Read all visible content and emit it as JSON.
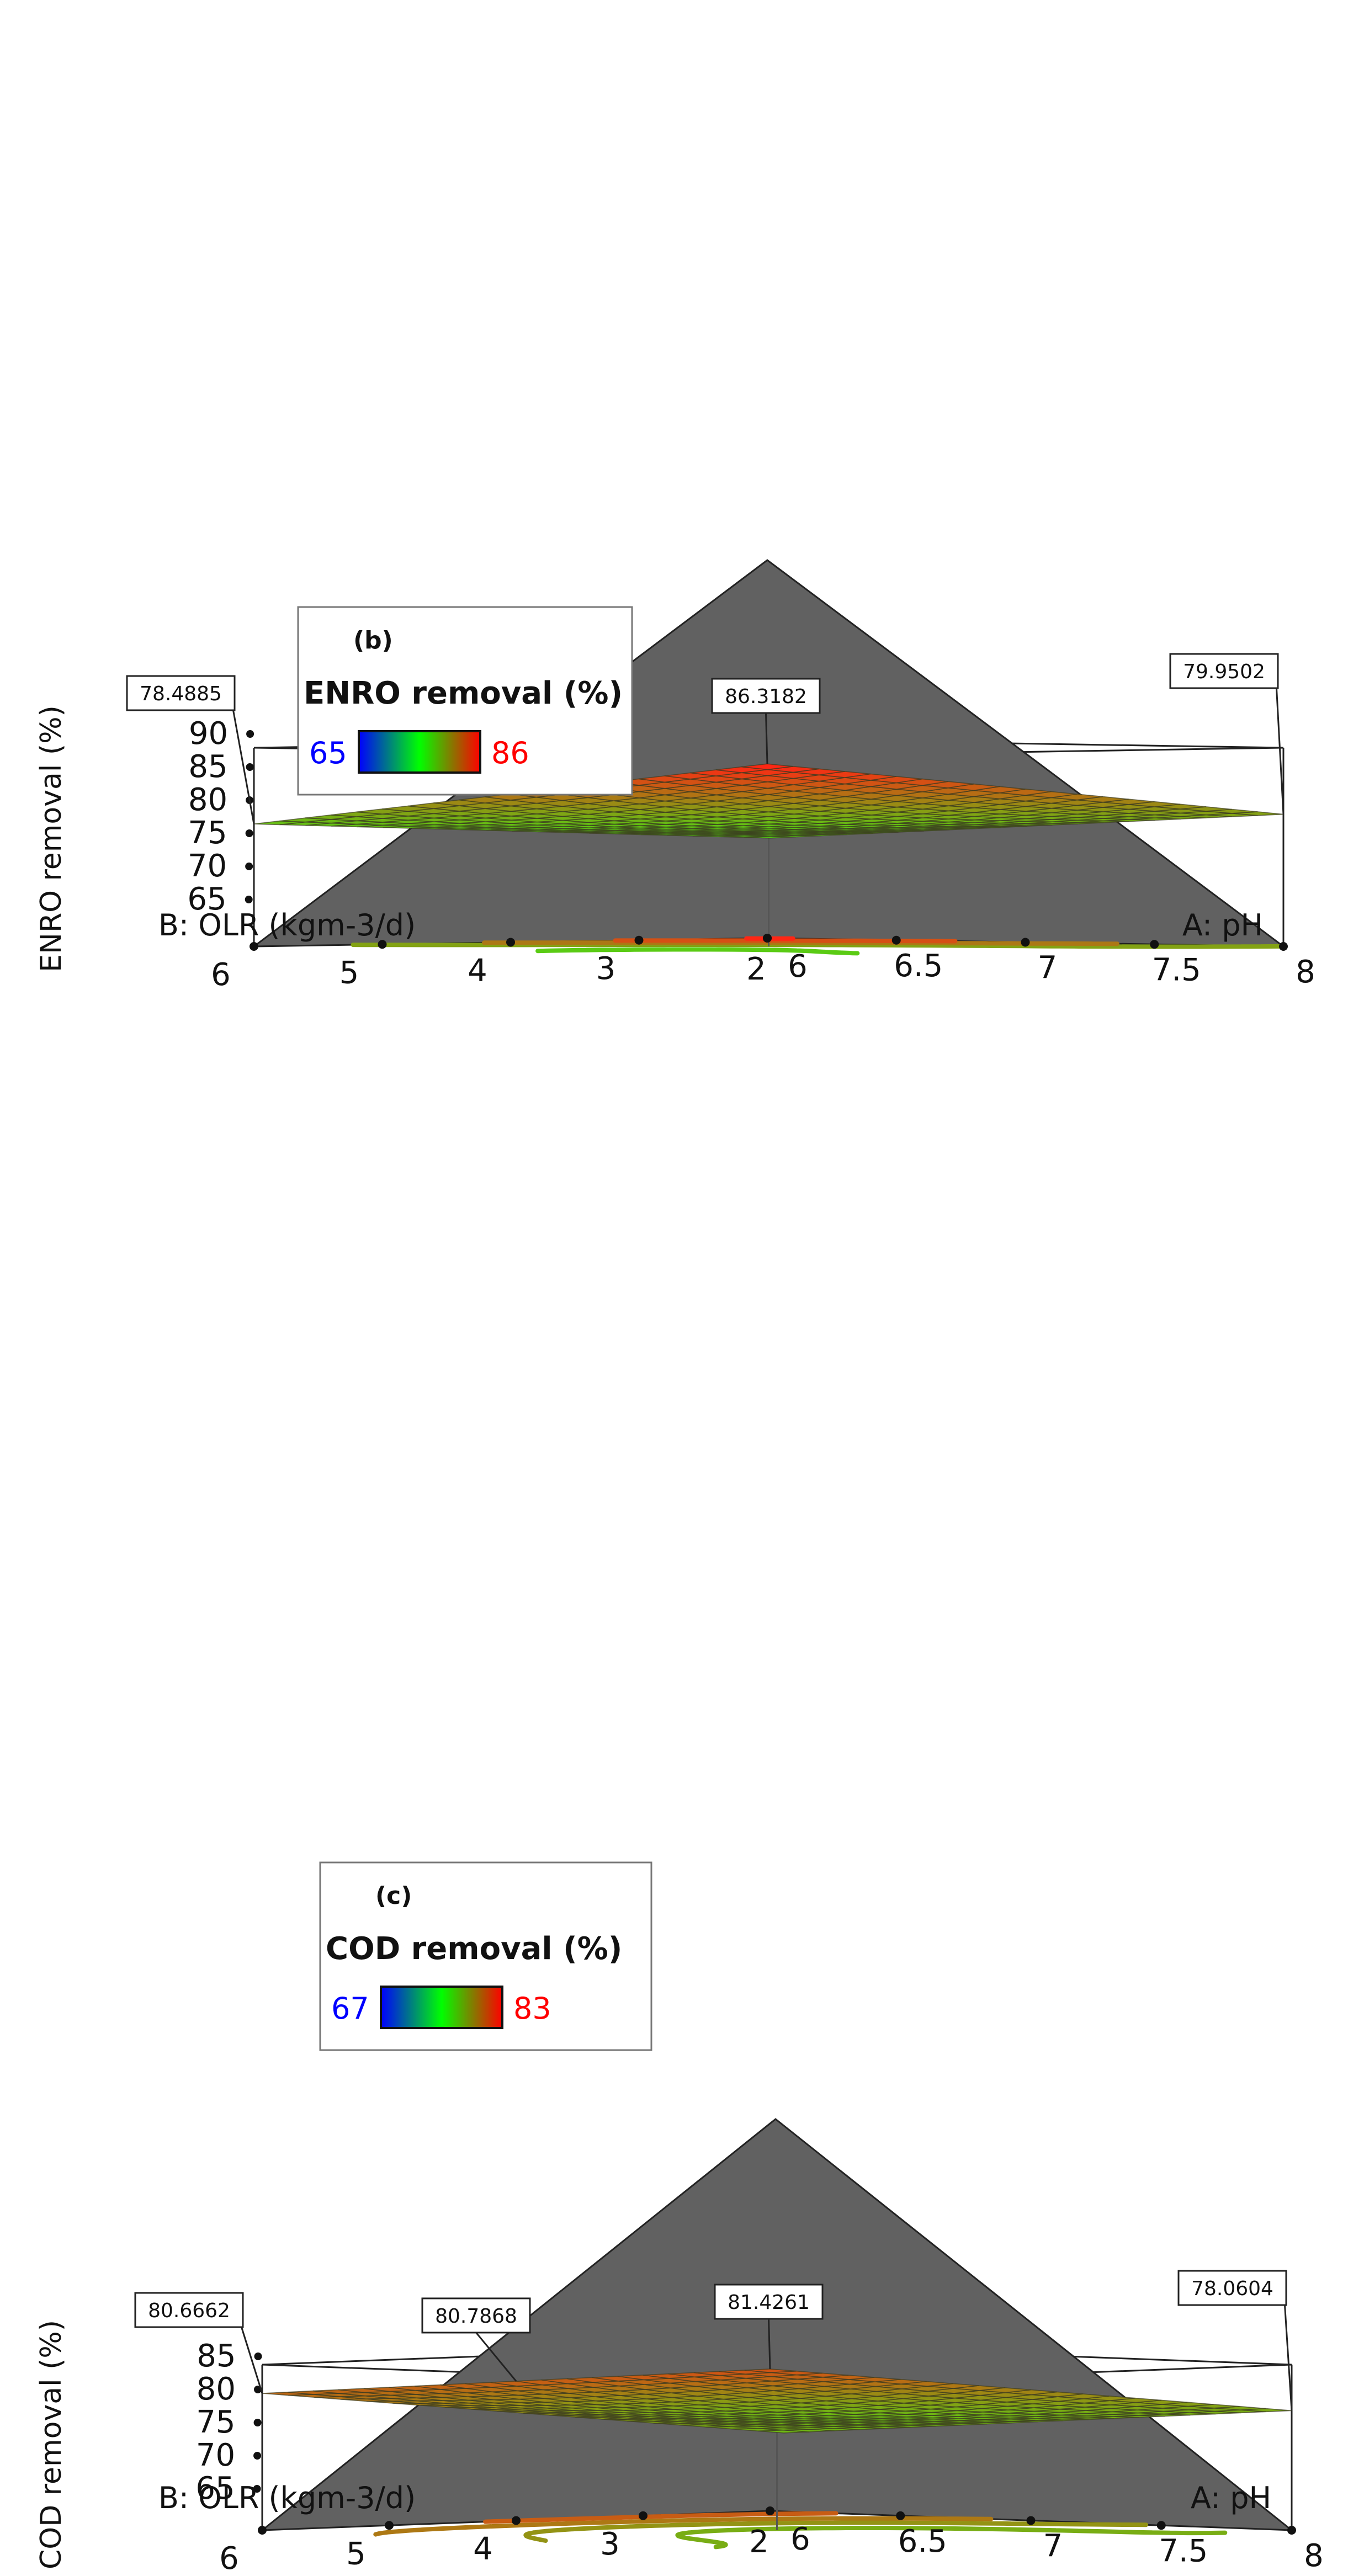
{
  "chart_data": [
    {
      "type": "surface3d",
      "panel_label": "(b)",
      "legend_title": "ENRO removal (%)",
      "legend_min": "65",
      "legend_max": "86",
      "color_low": "#0000ff",
      "color_mid": "#00ff00",
      "color_high": "#ff0000",
      "zlabel": "ENRO removal (%)",
      "xlabel": "A: pH",
      "ylabel": "B: OLR (kgm-3/d)",
      "x_ticks": [
        "6",
        "6.5",
        "7",
        "7.5",
        "8"
      ],
      "y_ticks": [
        "2",
        "3",
        "4",
        "5",
        "6"
      ],
      "z_ticks": [
        "65",
        "70",
        "75",
        "80",
        "85",
        "90"
      ],
      "xlim": [
        6,
        8
      ],
      "ylim": [
        2,
        6
      ],
      "zlim": [
        60,
        90
      ],
      "corner_flags": [
        {
          "label": "86.3182",
          "ph": 6,
          "olr": 2
        },
        {
          "label": "78.4885",
          "ph": 6,
          "olr": 6
        },
        {
          "label": "79.9502",
          "ph": 8,
          "olr": 2
        }
      ],
      "corner_values": {
        "ph6_olr2": 86.3182,
        "ph6_olr6": 78.4885,
        "ph8_olr2": 79.9502,
        "ph8_olr6": 77.6
      },
      "contour_levels": [
        78,
        80,
        82,
        84,
        86
      ]
    },
    {
      "type": "surface3d",
      "panel_label": "(c)",
      "legend_title": "COD removal (%)",
      "legend_min": "67",
      "legend_max": "83",
      "color_low": "#0000ff",
      "color_mid": "#00ff00",
      "color_high": "#ff0000",
      "zlabel": "COD removal (%)",
      "xlabel": "A: pH",
      "ylabel": "B: OLR (kgm-3/d)",
      "x_ticks": [
        "6",
        "6.5",
        "7",
        "7.5",
        "8"
      ],
      "y_ticks": [
        "2",
        "3",
        "4",
        "5",
        "6"
      ],
      "z_ticks": [
        "65",
        "70",
        "75",
        "80",
        "85"
      ],
      "xlim": [
        6,
        8
      ],
      "ylim": [
        2,
        6
      ],
      "zlim": [
        60,
        85
      ],
      "corner_flags": [
        {
          "label": "81.4261",
          "ph": 6,
          "olr": 2
        },
        {
          "label": "80.6662",
          "ph": 6,
          "olr": 6
        },
        {
          "label": "78.0604",
          "ph": 8,
          "olr": 2
        },
        {
          "label": "80.7868",
          "ph": 6,
          "olr": 4
        }
      ],
      "corner_values": {
        "ph6_olr2": 81.4261,
        "ph6_olr6": 80.6662,
        "ph8_olr2": 78.0604,
        "ph8_olr6": 77.6
      },
      "contour_levels": [
        77,
        78,
        79,
        80,
        81
      ]
    }
  ]
}
